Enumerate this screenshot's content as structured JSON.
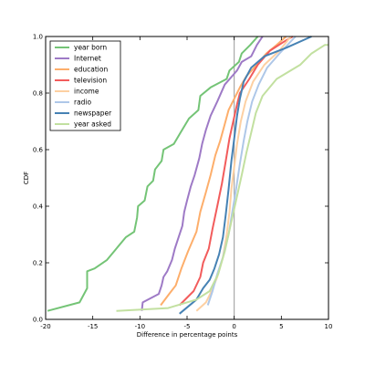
{
  "chart_data": {
    "type": "line",
    "title": "",
    "xlabel": "Difference in percentage points",
    "ylabel": "CDF",
    "xlim": [
      -20,
      10
    ],
    "ylim": [
      0.0,
      1.0
    ],
    "xticks": [
      -20,
      -15,
      -10,
      -5,
      0,
      5,
      10
    ],
    "yticks": [
      0.0,
      0.2,
      0.4,
      0.6,
      0.8,
      1.0
    ],
    "ytick_labels": [
      "0.0",
      "0.2",
      "0.4",
      "0.6",
      "0.8",
      "1.0"
    ],
    "grid": false,
    "legend_position": "top-left",
    "reference_line_x": 0,
    "series": [
      {
        "name": "year born",
        "color": "#74c476",
        "points": [
          [
            -19.8,
            0.03
          ],
          [
            -16.4,
            0.06
          ],
          [
            -15.6,
            0.11
          ],
          [
            -15.6,
            0.17
          ],
          [
            -14.8,
            0.18
          ],
          [
            -13.5,
            0.21
          ],
          [
            -11.5,
            0.29
          ],
          [
            -10.6,
            0.31
          ],
          [
            -10.3,
            0.36
          ],
          [
            -10.2,
            0.4
          ],
          [
            -9.5,
            0.42
          ],
          [
            -9.2,
            0.47
          ],
          [
            -8.6,
            0.49
          ],
          [
            -8.4,
            0.53
          ],
          [
            -7.7,
            0.56
          ],
          [
            -7.5,
            0.6
          ],
          [
            -6.4,
            0.62
          ],
          [
            -5.7,
            0.66
          ],
          [
            -4.8,
            0.71
          ],
          [
            -3.8,
            0.74
          ],
          [
            -3.6,
            0.79
          ],
          [
            -2.5,
            0.82
          ],
          [
            -0.8,
            0.85
          ],
          [
            -0.5,
            0.88
          ],
          [
            0.5,
            0.91
          ],
          [
            0.8,
            0.94
          ],
          [
            1.7,
            0.97
          ],
          [
            2.5,
            1.0
          ]
        ]
      },
      {
        "name": "Internet",
        "color": "#9e7ac6",
        "points": [
          [
            -9.8,
            0.03
          ],
          [
            -9.7,
            0.06
          ],
          [
            -8.0,
            0.09
          ],
          [
            -7.7,
            0.12
          ],
          [
            -7.5,
            0.15
          ],
          [
            -7.1,
            0.17
          ],
          [
            -6.6,
            0.21
          ],
          [
            -6.3,
            0.25
          ],
          [
            -5.9,
            0.29
          ],
          [
            -5.5,
            0.33
          ],
          [
            -5.3,
            0.38
          ],
          [
            -5.0,
            0.42
          ],
          [
            -4.6,
            0.47
          ],
          [
            -4.2,
            0.51
          ],
          [
            -3.7,
            0.57
          ],
          [
            -3.4,
            0.62
          ],
          [
            -3.0,
            0.67
          ],
          [
            -2.5,
            0.72
          ],
          [
            -1.8,
            0.77
          ],
          [
            -1.0,
            0.83
          ],
          [
            0.3,
            0.88
          ],
          [
            0.8,
            0.91
          ],
          [
            1.8,
            0.93
          ],
          [
            2.4,
            0.97
          ],
          [
            3.0,
            1.0
          ]
        ]
      },
      {
        "name": "education",
        "color": "#fdae6b",
        "points": [
          [
            -7.8,
            0.05
          ],
          [
            -6.9,
            0.09
          ],
          [
            -6.2,
            0.12
          ],
          [
            -5.6,
            0.18
          ],
          [
            -4.9,
            0.24
          ],
          [
            -4.0,
            0.31
          ],
          [
            -3.6,
            0.38
          ],
          [
            -3.0,
            0.45
          ],
          [
            -2.5,
            0.51
          ],
          [
            -2.0,
            0.58
          ],
          [
            -1.5,
            0.63
          ],
          [
            -1.0,
            0.69
          ],
          [
            -0.6,
            0.74
          ],
          [
            0.0,
            0.78
          ],
          [
            0.6,
            0.82
          ],
          [
            1.3,
            0.86
          ],
          [
            2.4,
            0.9
          ],
          [
            3.4,
            0.94
          ],
          [
            4.5,
            0.97
          ],
          [
            5.5,
            1.0
          ]
        ]
      },
      {
        "name": "television",
        "color": "#f25c5c",
        "points": [
          [
            -5.8,
            0.05
          ],
          [
            -4.3,
            0.1
          ],
          [
            -3.6,
            0.15
          ],
          [
            -3.3,
            0.2
          ],
          [
            -2.7,
            0.25
          ],
          [
            -2.3,
            0.32
          ],
          [
            -1.8,
            0.4
          ],
          [
            -1.3,
            0.48
          ],
          [
            -0.9,
            0.56
          ],
          [
            -0.5,
            0.64
          ],
          [
            -0.1,
            0.7
          ],
          [
            0.3,
            0.76
          ],
          [
            0.6,
            0.8
          ],
          [
            1.6,
            0.85
          ],
          [
            2.5,
            0.9
          ],
          [
            3.8,
            0.95
          ],
          [
            5.2,
            0.98
          ],
          [
            6.2,
            1.0
          ]
        ]
      },
      {
        "name": "income",
        "color": "#fdd0a2",
        "points": [
          [
            -4.0,
            0.03
          ],
          [
            -3.0,
            0.06
          ],
          [
            -2.4,
            0.1
          ],
          [
            -1.8,
            0.15
          ],
          [
            -1.2,
            0.22
          ],
          [
            -0.8,
            0.3
          ],
          [
            -0.5,
            0.38
          ],
          [
            -0.3,
            0.46
          ],
          [
            0.0,
            0.54
          ],
          [
            0.3,
            0.62
          ],
          [
            0.7,
            0.7
          ],
          [
            1.2,
            0.77
          ],
          [
            2.0,
            0.84
          ],
          [
            3.2,
            0.9
          ],
          [
            4.8,
            0.95
          ],
          [
            6.0,
            1.0
          ]
        ]
      },
      {
        "name": "radio",
        "color": "#aec7e8",
        "points": [
          [
            -2.8,
            0.05
          ],
          [
            -2.3,
            0.1
          ],
          [
            -1.8,
            0.16
          ],
          [
            -1.2,
            0.22
          ],
          [
            -0.6,
            0.3
          ],
          [
            -0.2,
            0.38
          ],
          [
            0.2,
            0.46
          ],
          [
            0.6,
            0.55
          ],
          [
            1.0,
            0.63
          ],
          [
            1.4,
            0.7
          ],
          [
            1.9,
            0.77
          ],
          [
            2.6,
            0.83
          ],
          [
            3.5,
            0.89
          ],
          [
            4.8,
            0.94
          ],
          [
            6.5,
            1.0
          ]
        ]
      },
      {
        "name": "newspaper",
        "color": "#4682b4",
        "points": [
          [
            -5.8,
            0.02
          ],
          [
            -4.0,
            0.07
          ],
          [
            -3.3,
            0.11
          ],
          [
            -2.6,
            0.14
          ],
          [
            -2.1,
            0.18
          ],
          [
            -1.6,
            0.23
          ],
          [
            -1.2,
            0.29
          ],
          [
            -0.9,
            0.37
          ],
          [
            -0.6,
            0.46
          ],
          [
            -0.3,
            0.56
          ],
          [
            0.0,
            0.64
          ],
          [
            0.3,
            0.72
          ],
          [
            0.6,
            0.78
          ],
          [
            1.0,
            0.84
          ],
          [
            1.8,
            0.89
          ],
          [
            3.2,
            0.93
          ],
          [
            5.5,
            0.96
          ],
          [
            8.2,
            1.0
          ]
        ]
      },
      {
        "name": "year asked",
        "color": "#c2e0a0",
        "points": [
          [
            -12.5,
            0.03
          ],
          [
            -7.0,
            0.04
          ],
          [
            -4.0,
            0.07
          ],
          [
            -2.6,
            0.1
          ],
          [
            -1.7,
            0.16
          ],
          [
            -1.0,
            0.24
          ],
          [
            -0.4,
            0.33
          ],
          [
            0.2,
            0.42
          ],
          [
            0.8,
            0.51
          ],
          [
            1.3,
            0.59
          ],
          [
            1.8,
            0.66
          ],
          [
            2.3,
            0.73
          ],
          [
            3.0,
            0.79
          ],
          [
            4.5,
            0.85
          ],
          [
            7.0,
            0.9
          ],
          [
            8.2,
            0.94
          ],
          [
            9.6,
            0.97
          ],
          [
            10.0,
            0.97
          ]
        ]
      }
    ]
  }
}
